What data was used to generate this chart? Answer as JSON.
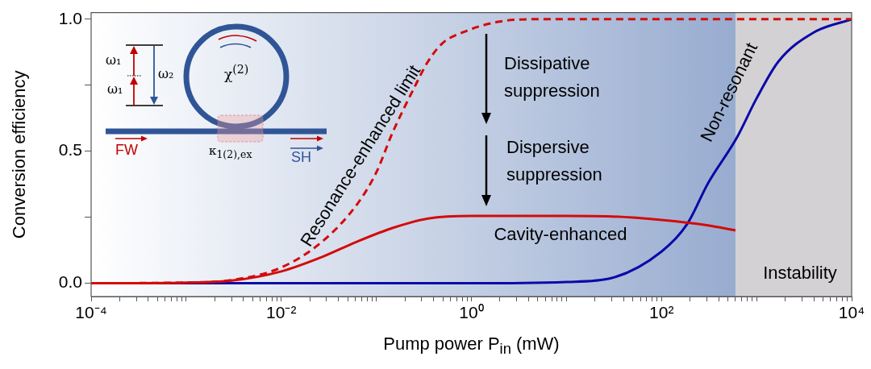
{
  "chart_data": {
    "type": "line",
    "xlabel": "Pump power P$_{in}$ (mW)",
    "ylabel": "Conversion efficiency",
    "log": "x",
    "xlim": [
      0.0001,
      10000
    ],
    "ylim": [
      -0.05,
      1.025
    ],
    "xticks": [
      {
        "value": 0.0001,
        "label": "10⁻⁴"
      },
      {
        "value": 0.0002,
        "label": null
      },
      {
        "value": 0.0003,
        "label": null
      },
      {
        "value": 0.0004,
        "label": null
      },
      {
        "value": 0.0005,
        "label": null
      },
      {
        "value": 0.0006,
        "label": null
      },
      {
        "value": 0.0007,
        "label": null
      },
      {
        "value": 0.0008,
        "label": null
      },
      {
        "value": 0.0009,
        "label": null
      },
      {
        "value": 0.001,
        "label": null
      },
      {
        "value": 0.002,
        "label": null
      },
      {
        "value": 0.003,
        "label": null
      },
      {
        "value": 0.004,
        "label": null
      },
      {
        "value": 0.005,
        "label": null
      },
      {
        "value": 0.006,
        "label": null
      },
      {
        "value": 0.007,
        "label": null
      },
      {
        "value": 0.008,
        "label": null
      },
      {
        "value": 0.009,
        "label": null
      },
      {
        "value": 0.01,
        "label": "10⁻²"
      },
      {
        "value": 0.02,
        "label": null
      },
      {
        "value": 0.03,
        "label": null
      },
      {
        "value": 0.04,
        "label": null
      },
      {
        "value": 0.05,
        "label": null
      },
      {
        "value": 0.06,
        "label": null
      },
      {
        "value": 0.07,
        "label": null
      },
      {
        "value": 0.08,
        "label": null
      },
      {
        "value": 0.09,
        "label": null
      },
      {
        "value": 0.1,
        "label": null
      },
      {
        "value": 0.2,
        "label": null
      },
      {
        "value": 0.3,
        "label": null
      },
      {
        "value": 0.4,
        "label": null
      },
      {
        "value": 0.5,
        "label": null
      },
      {
        "value": 0.6,
        "label": null
      },
      {
        "value": 0.7,
        "label": null
      },
      {
        "value": 0.8,
        "label": null
      },
      {
        "value": 0.9,
        "label": null
      },
      {
        "value": 1,
        "label": "10⁰"
      },
      {
        "value": 2,
        "label": null
      },
      {
        "value": 3,
        "label": null
      },
      {
        "value": 4,
        "label": null
      },
      {
        "value": 5,
        "label": null
      },
      {
        "value": 6,
        "label": null
      },
      {
        "value": 7,
        "label": null
      },
      {
        "value": 8,
        "label": null
      },
      {
        "value": 9,
        "label": null
      },
      {
        "value": 10,
        "label": null
      },
      {
        "value": 20,
        "label": null
      },
      {
        "value": 30,
        "label": null
      },
      {
        "value": 40,
        "label": null
      },
      {
        "value": 50,
        "label": null
      },
      {
        "value": 60,
        "label": null
      },
      {
        "value": 70,
        "label": null
      },
      {
        "value": 80,
        "label": null
      },
      {
        "value": 90,
        "label": null
      },
      {
        "value": 100,
        "label": "10²"
      },
      {
        "value": 200,
        "label": null
      },
      {
        "value": 300,
        "label": null
      },
      {
        "value": 400,
        "label": null
      },
      {
        "value": 500,
        "label": null
      },
      {
        "value": 600,
        "label": null
      },
      {
        "value": 700,
        "label": null
      },
      {
        "value": 800,
        "label": null
      },
      {
        "value": 900,
        "label": null
      },
      {
        "value": 1000,
        "label": null
      },
      {
        "value": 2000,
        "label": null
      },
      {
        "value": 3000,
        "label": null
      },
      {
        "value": 4000,
        "label": null
      },
      {
        "value": 5000,
        "label": null
      },
      {
        "value": 6000,
        "label": null
      },
      {
        "value": 7000,
        "label": null
      },
      {
        "value": 8000,
        "label": null
      },
      {
        "value": 9000,
        "label": null
      },
      {
        "value": 10000,
        "label": "10⁴"
      }
    ],
    "yticks": [
      {
        "value": 0,
        "label": "0.0"
      },
      {
        "value": 0.25,
        "label": null
      },
      {
        "value": 0.5,
        "label": "0.5"
      },
      {
        "value": 0.75,
        "label": null
      },
      {
        "value": 1,
        "label": "1.0"
      }
    ],
    "grid": false,
    "legend": false,
    "bands": [
      {
        "axis": "x",
        "from": 0.0001,
        "to": 600,
        "color": "#98acd0"
      },
      {
        "axis": "x",
        "from": 600,
        "to": 10000,
        "label": "Instability",
        "color": "#d3d1d3"
      }
    ],
    "series": [
      {
        "name": "Resonance-enhanced limit",
        "color": "#d40b0b",
        "line_style": "dashed",
        "x": [
          0.0001,
          0.001,
          0.003,
          0.01,
          0.027,
          0.063,
          0.1,
          0.148,
          0.25,
          0.35,
          0.5,
          0.81,
          1.9,
          5,
          10000
        ],
        "values": [
          0.0,
          0.003,
          0.012,
          0.06,
          0.158,
          0.3,
          0.42,
          0.57,
          0.74,
          0.84,
          0.91,
          0.95,
          0.99,
          1.0,
          1.0
        ]
      },
      {
        "name": "Cavity-enhanced",
        "color": "#d40b0b",
        "line_style": "solid",
        "x": [
          0.0001,
          0.001,
          0.003,
          0.01,
          0.027,
          0.063,
          0.15,
          0.35,
          1,
          10,
          30,
          100,
          300,
          600
        ],
        "values": [
          0.0,
          0.003,
          0.01,
          0.045,
          0.1,
          0.158,
          0.21,
          0.245,
          0.255,
          0.255,
          0.253,
          0.24,
          0.22,
          0.2
        ]
      },
      {
        "name": "Non-resonant",
        "color": "#0a0aa8",
        "line_style": "solid",
        "x": [
          0.0001,
          1,
          10,
          30,
          100,
          186,
          310,
          617,
          1000,
          1700,
          4000,
          10000
        ],
        "values": [
          0.0,
          0.0,
          0.005,
          0.02,
          0.12,
          0.224,
          0.38,
          0.55,
          0.7,
          0.84,
          0.95,
          1.0
        ]
      }
    ],
    "annotations": [
      "Dissipative suppression",
      "Dispersive suppression",
      "ω₁",
      "ω₁",
      "ω₂",
      "χ$^{(2)}$",
      "FW",
      "SH",
      "κ$_{1(2),ex}$"
    ]
  }
}
